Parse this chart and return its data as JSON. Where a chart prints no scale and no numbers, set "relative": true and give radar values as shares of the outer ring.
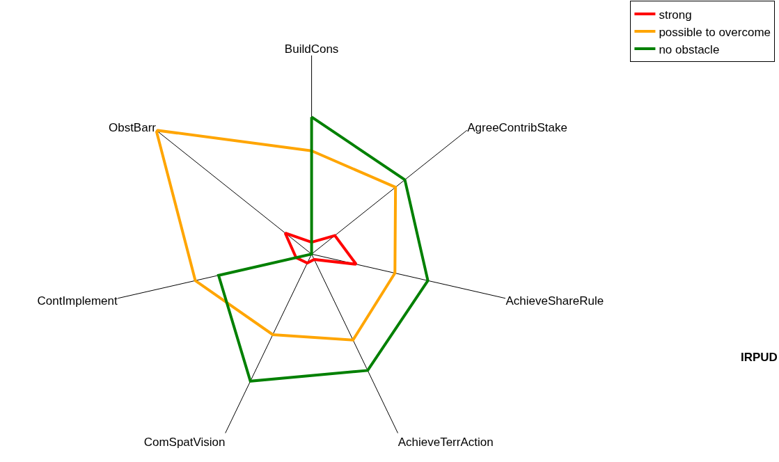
{
  "chart_data": {
    "type": "radar",
    "relative": true,
    "categories": [
      "BuildCons",
      "AgreeContribStake",
      "AchieveShareRule",
      "AchieveTerrAction",
      "ComSpatVision",
      "ContImplement",
      "ObstBarr"
    ],
    "series": [
      {
        "name": "strong",
        "color": "#ff0000",
        "values": [
          0.06,
          0.15,
          0.23,
          0.03,
          0.05,
          0.08,
          0.17
        ]
      },
      {
        "name": "possible to overcome",
        "color": "#ffa500",
        "values": [
          0.52,
          0.54,
          0.43,
          0.48,
          0.45,
          0.6,
          1.0
        ]
      },
      {
        "name": "no obstacle",
        "color": "#008000",
        "values": [
          0.69,
          0.6,
          0.6,
          0.65,
          0.71,
          0.48,
          0
        ]
      }
    ],
    "legend": "top right",
    "marker": "none",
    "line_style": "solid",
    "annotations": [
      "IRPUD"
    ]
  }
}
